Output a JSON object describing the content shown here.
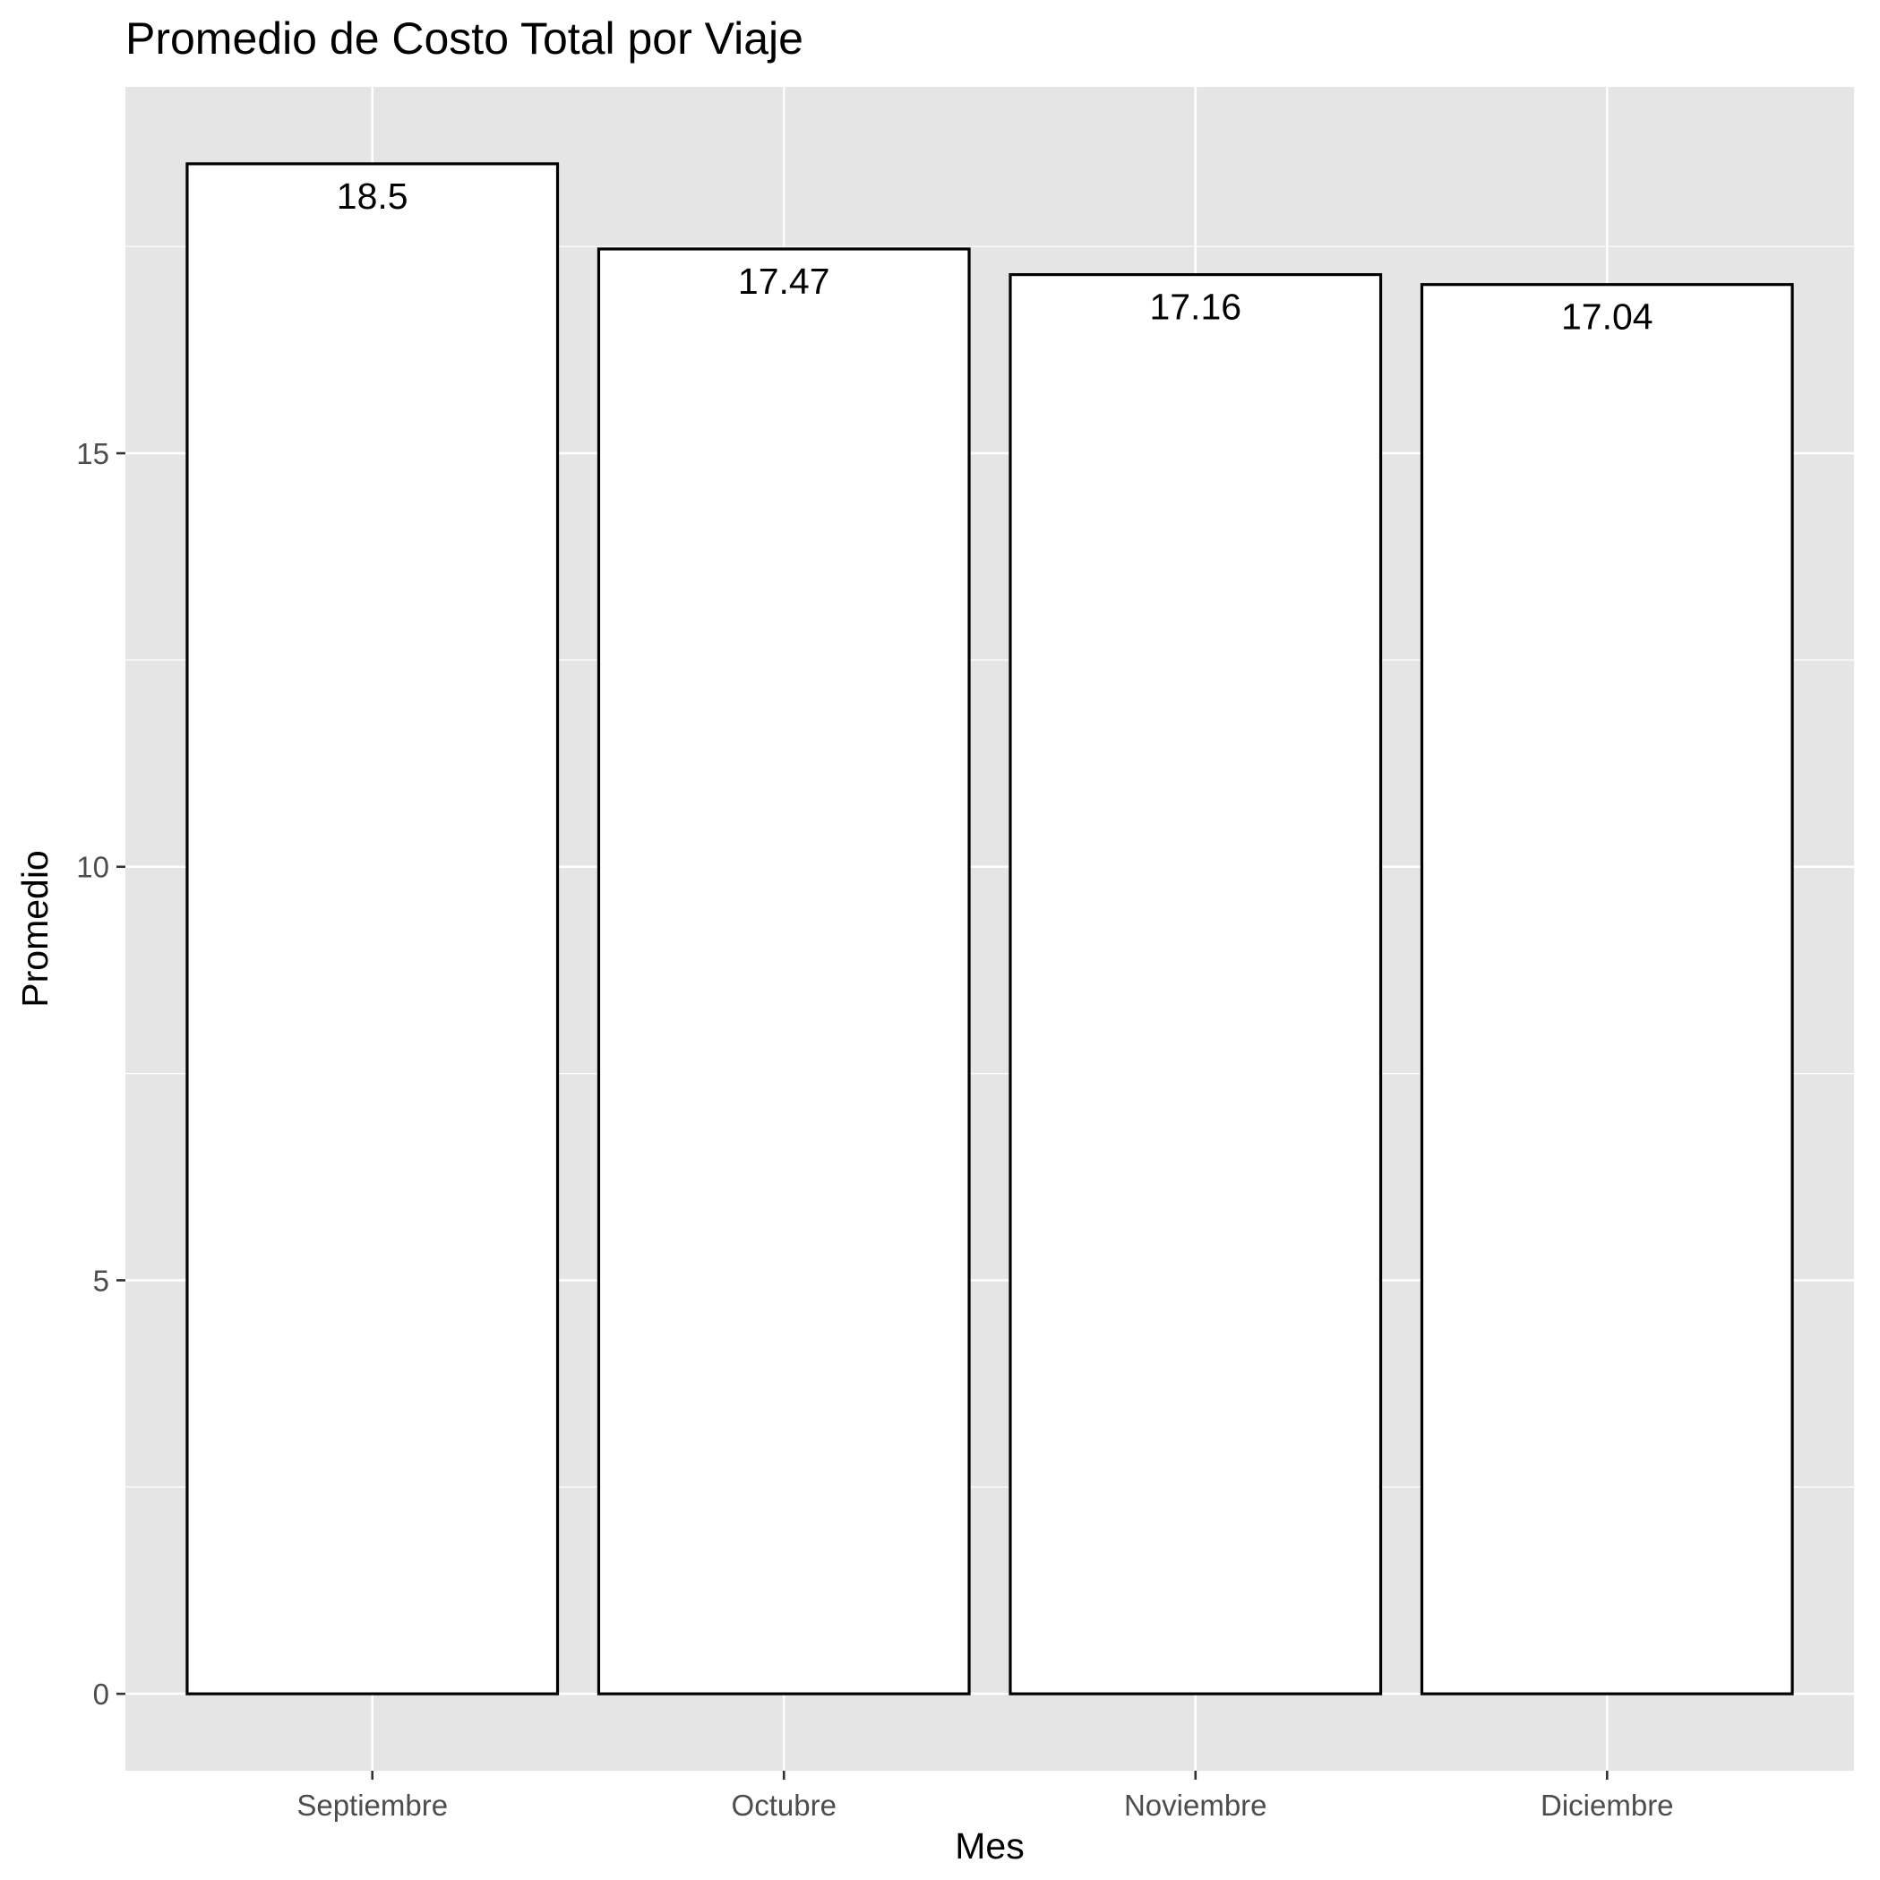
{
  "chart_data": {
    "type": "bar",
    "title": "Promedio de Costo Total por Viaje",
    "xlabel": "Mes",
    "ylabel": "Promedio",
    "categories": [
      "Septiembre",
      "Octubre",
      "Noviembre",
      "Diciembre"
    ],
    "values": [
      18.5,
      17.47,
      17.16,
      17.04
    ],
    "data_labels": [
      "18.5",
      "17.47",
      "17.16",
      "17.04"
    ],
    "yticks": [
      0,
      5,
      10,
      15
    ],
    "ytick_labels": [
      "0",
      "5",
      "10",
      "15"
    ],
    "ylim": [
      -0.93,
      19.43
    ],
    "grid": true,
    "colors": {
      "panel_background": "#e5e5e5",
      "grid_line": "#ffffff",
      "bar_fill": "#ffffff",
      "bar_stroke": "#000000",
      "tick_text": "#4d4d4d",
      "tick_mark": "#333333"
    }
  }
}
